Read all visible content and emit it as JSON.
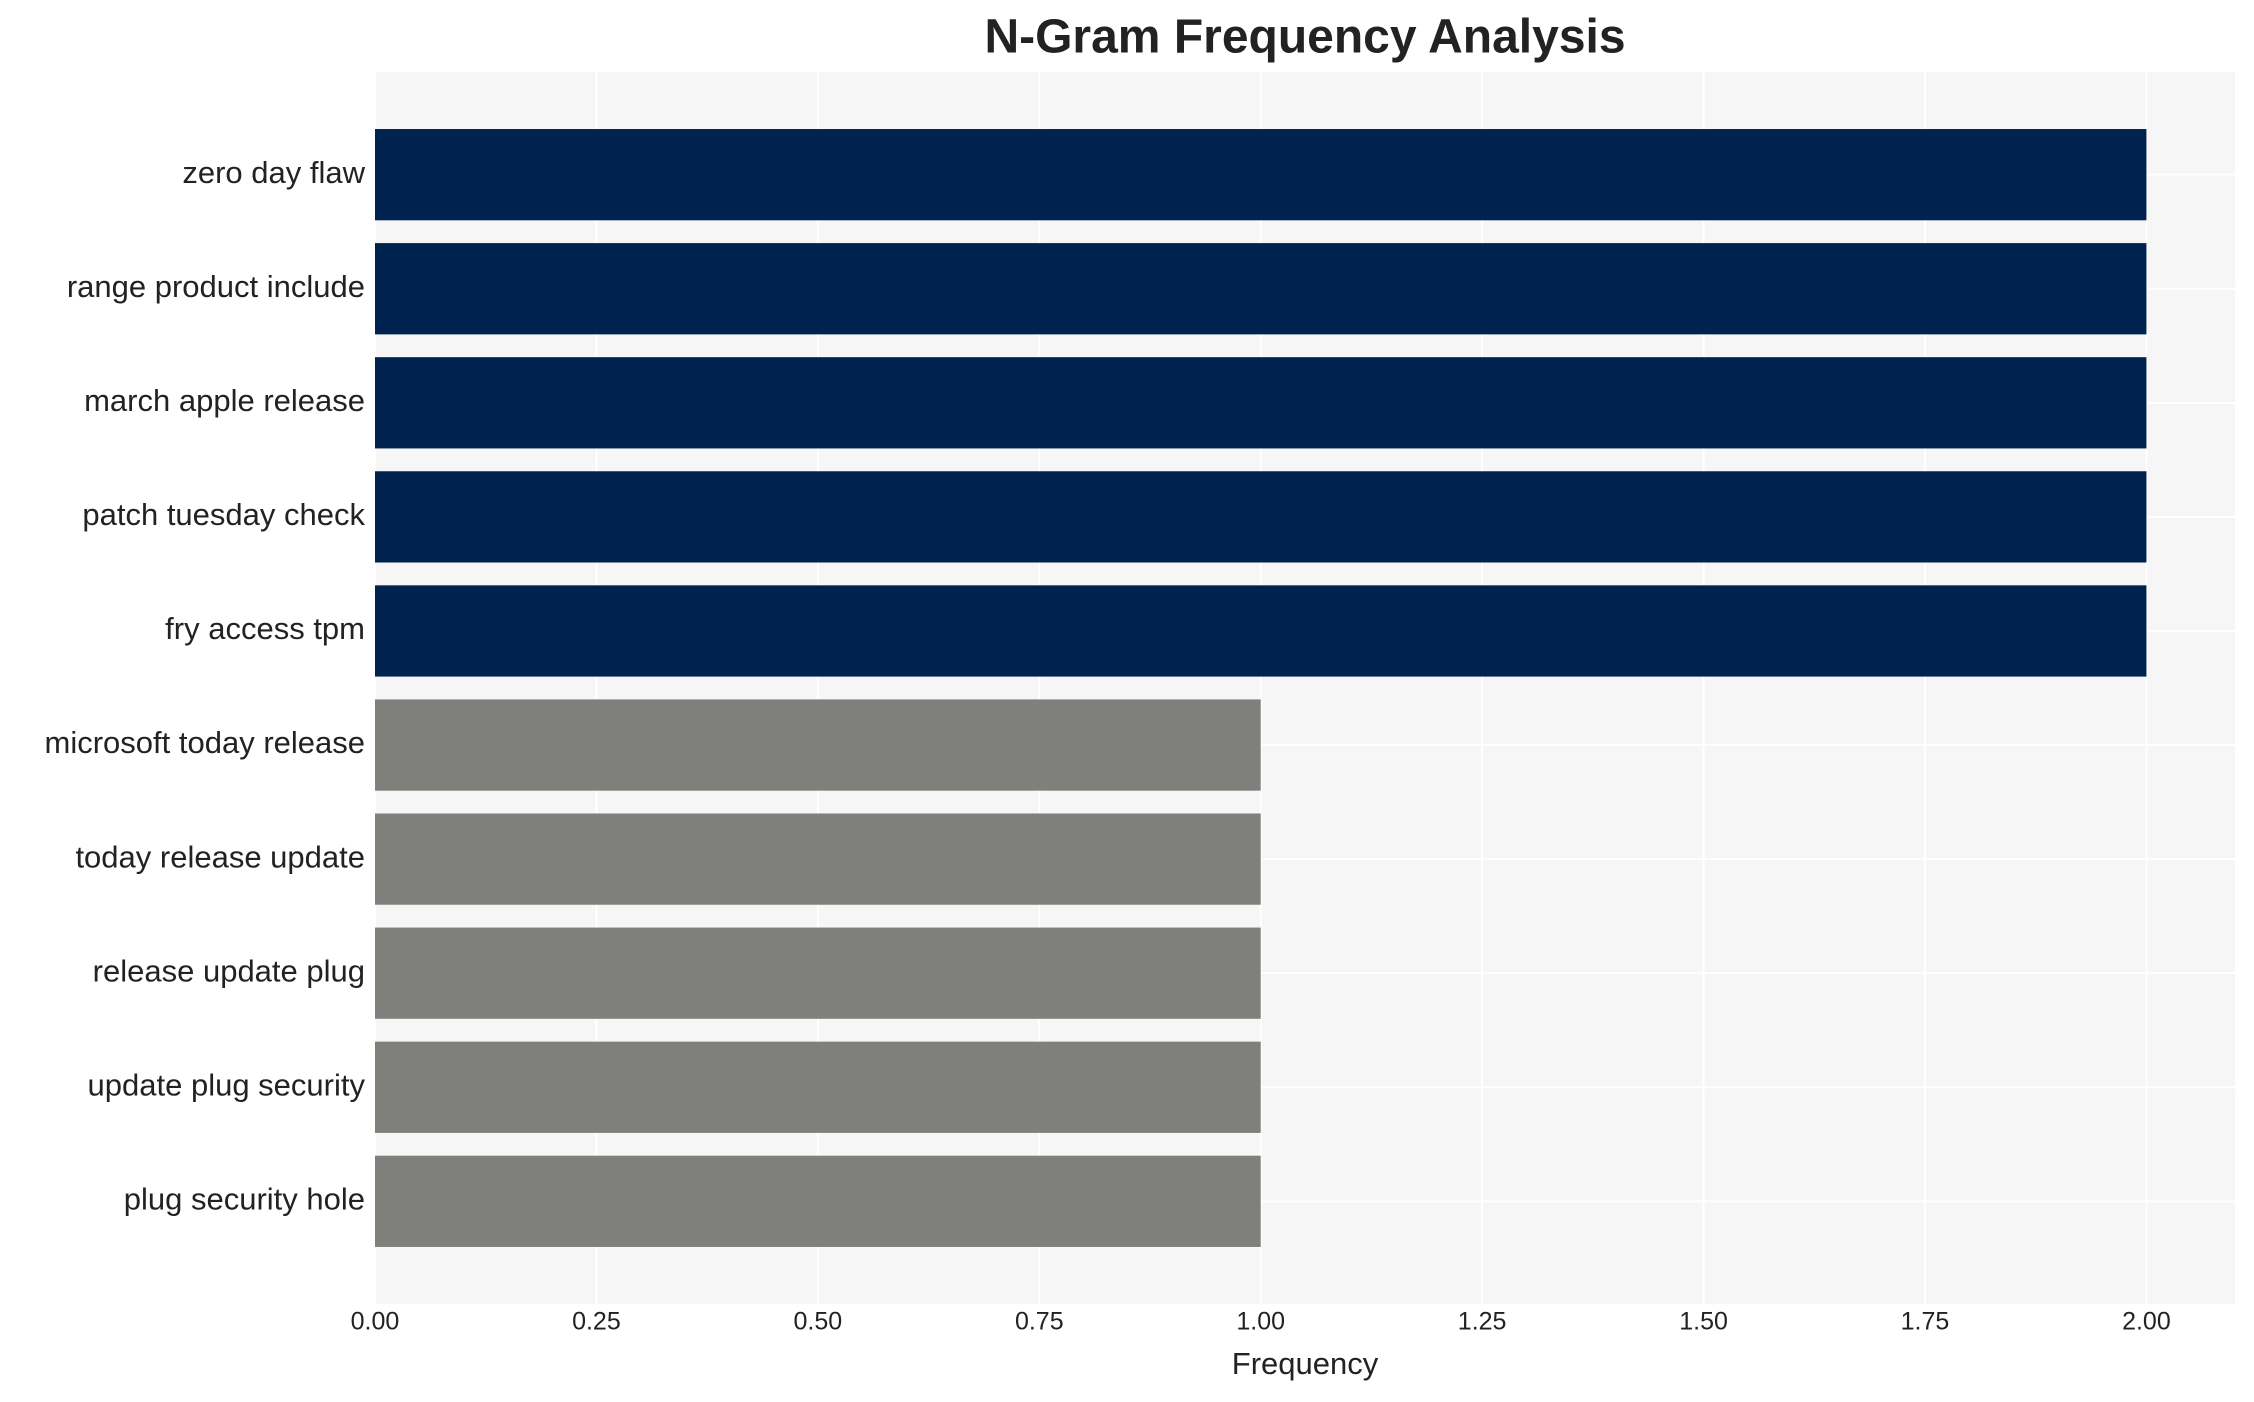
{
  "chart_data": {
    "type": "barh",
    "title": "N-Gram Frequency Analysis",
    "x_label": "Frequency",
    "categories": [
      "zero day flaw",
      "range product include",
      "march apple release",
      "patch tuesday check",
      "fry access tpm",
      "microsoft today release",
      "today release update",
      "release update plug",
      "update plug security",
      "plug security hole"
    ],
    "values": [
      2,
      2,
      2,
      2,
      2,
      1,
      1,
      1,
      1,
      1
    ],
    "colors": [
      "#00224e",
      "#00224e",
      "#00224e",
      "#00224e",
      "#00224e",
      "#7f7f7b",
      "#7f7f7b",
      "#7f7f7b",
      "#7f7f7b",
      "#7f7f7b"
    ],
    "xlim": [
      0,
      2.1
    ],
    "xticks": [
      {
        "value": 0,
        "label": "0.00"
      },
      {
        "value": 0.25,
        "label": "0.25"
      },
      {
        "value": 0.5,
        "label": "0.50"
      },
      {
        "value": 0.75,
        "label": "0.75"
      },
      {
        "value": 1,
        "label": "1.00"
      },
      {
        "value": 1.25,
        "label": "1.25"
      },
      {
        "value": 1.5,
        "label": "1.50"
      },
      {
        "value": 1.75,
        "label": "1.75"
      },
      {
        "value": 2,
        "label": "2.00"
      }
    ],
    "grid": true
  }
}
